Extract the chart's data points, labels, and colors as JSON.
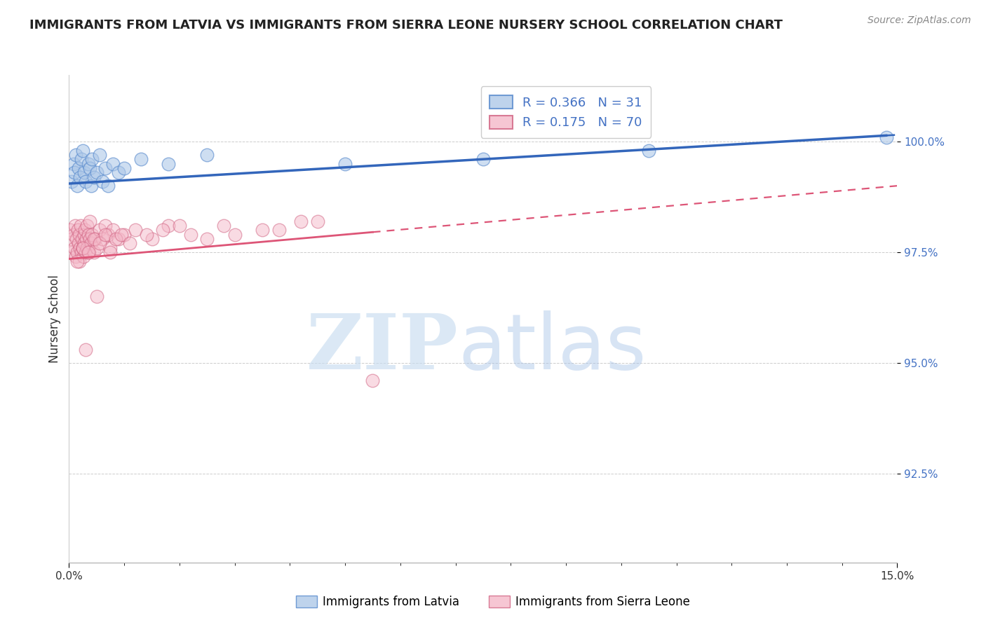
{
  "title": "IMMIGRANTS FROM LATVIA VS IMMIGRANTS FROM SIERRA LEONE NURSERY SCHOOL CORRELATION CHART",
  "source": "Source: ZipAtlas.com",
  "ylabel": "Nursery School",
  "xlim": [
    0.0,
    15.0
  ],
  "ylim": [
    90.5,
    101.5
  ],
  "yticks": [
    92.5,
    95.0,
    97.5,
    100.0
  ],
  "ytick_labels": [
    "92.5%",
    "95.0%",
    "97.5%",
    "100.0%"
  ],
  "xticks": [
    0.0,
    15.0
  ],
  "xtick_labels": [
    "0.0%",
    "15.0%"
  ],
  "legend_R1": "R = 0.366",
  "legend_N1": "N = 31",
  "legend_R2": "R = 0.175",
  "legend_N2": "N = 70",
  "legend_label1": "Immigrants from Latvia",
  "legend_label2": "Immigrants from Sierra Leone",
  "blue_color": "#aec8e8",
  "pink_color": "#f4b8c8",
  "blue_edge_color": "#5588cc",
  "pink_edge_color": "#d06080",
  "blue_line_color": "#3366bb",
  "pink_line_color": "#dd5577",
  "title_fontsize": 13,
  "source_fontsize": 10,
  "latvia_x": [
    0.05,
    0.08,
    0.1,
    0.12,
    0.15,
    0.17,
    0.2,
    0.22,
    0.25,
    0.28,
    0.3,
    0.35,
    0.38,
    0.4,
    0.42,
    0.45,
    0.5,
    0.55,
    0.6,
    0.65,
    0.7,
    0.8,
    0.9,
    1.0,
    1.3,
    1.8,
    2.5,
    5.0,
    7.5,
    10.5,
    14.8
  ],
  "latvia_y": [
    99.1,
    99.5,
    99.3,
    99.7,
    99.0,
    99.4,
    99.2,
    99.6,
    99.8,
    99.3,
    99.1,
    99.5,
    99.4,
    99.0,
    99.6,
    99.2,
    99.3,
    99.7,
    99.1,
    99.4,
    99.0,
    99.5,
    99.3,
    99.4,
    99.6,
    99.5,
    99.7,
    99.5,
    99.6,
    99.8,
    100.1
  ],
  "sl_x": [
    0.02,
    0.04,
    0.06,
    0.08,
    0.1,
    0.11,
    0.12,
    0.14,
    0.15,
    0.16,
    0.17,
    0.18,
    0.19,
    0.2,
    0.21,
    0.22,
    0.23,
    0.25,
    0.26,
    0.27,
    0.28,
    0.29,
    0.3,
    0.31,
    0.32,
    0.33,
    0.35,
    0.36,
    0.37,
    0.38,
    0.4,
    0.42,
    0.45,
    0.48,
    0.5,
    0.55,
    0.6,
    0.65,
    0.7,
    0.75,
    0.8,
    0.9,
    1.0,
    1.2,
    1.5,
    1.8,
    2.2,
    2.8,
    3.5,
    4.2,
    0.15,
    0.25,
    0.35,
    0.45,
    0.55,
    0.65,
    0.75,
    0.85,
    0.95,
    1.1,
    1.4,
    1.7,
    2.0,
    2.5,
    3.0,
    3.8,
    4.5,
    5.5,
    0.3,
    0.5
  ],
  "sl_y": [
    98.0,
    97.8,
    97.5,
    97.9,
    97.6,
    98.1,
    97.4,
    97.8,
    97.5,
    98.0,
    97.7,
    97.3,
    97.9,
    97.6,
    98.1,
    97.5,
    97.8,
    97.6,
    97.4,
    97.9,
    97.7,
    98.0,
    97.5,
    97.8,
    98.1,
    97.6,
    97.9,
    97.5,
    97.8,
    98.2,
    97.7,
    97.9,
    97.5,
    97.8,
    97.6,
    98.0,
    97.8,
    98.1,
    97.9,
    97.6,
    98.0,
    97.8,
    97.9,
    98.0,
    97.8,
    98.1,
    97.9,
    98.1,
    98.0,
    98.2,
    97.3,
    97.6,
    97.5,
    97.8,
    97.7,
    97.9,
    97.5,
    97.8,
    97.9,
    97.7,
    97.9,
    98.0,
    98.1,
    97.8,
    97.9,
    98.0,
    98.2,
    94.6,
    95.3,
    96.5
  ],
  "lv_trend_x0": 0.0,
  "lv_trend_y0": 99.05,
  "lv_trend_x1": 15.0,
  "lv_trend_y1": 100.15,
  "lv_solid_xmax": 14.8,
  "sl_trend_x0": 0.0,
  "sl_trend_y0": 97.35,
  "sl_trend_x1": 15.0,
  "sl_trend_y1": 99.0,
  "sl_solid_xmax": 5.5
}
